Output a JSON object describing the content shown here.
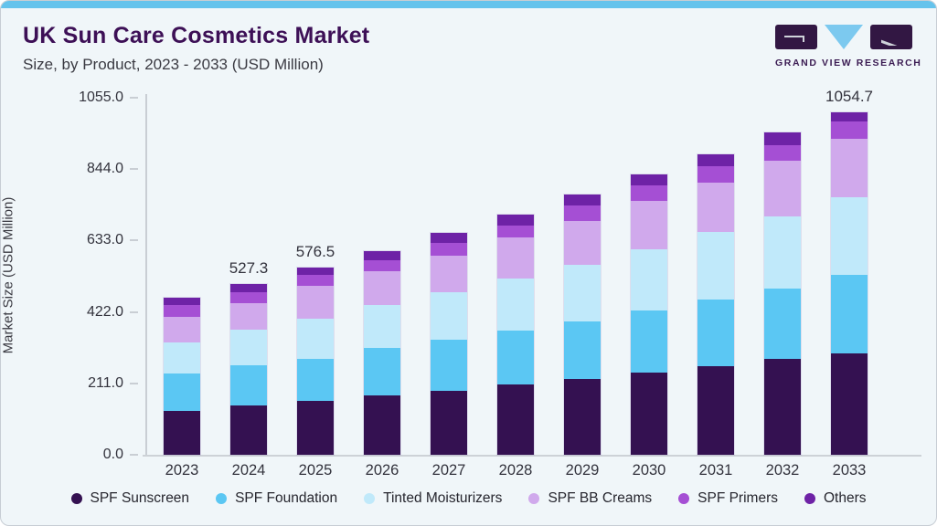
{
  "header": {
    "title": "UK Sun Care Cosmetics Market",
    "subtitle": "Size, by Product, 2023 - 2033 (USD Million)",
    "logo_text": "GRAND VIEW RESEARCH"
  },
  "colors": {
    "card_background": "#F0F6F9",
    "accent_strip": "#65C3EC",
    "title_text": "#3D1056",
    "axis_line": "#C9CED4",
    "axis_text": "#33333D"
  },
  "chart_data": {
    "type": "bar",
    "stacked": true,
    "title": "UK Sun Care Cosmetics Market Size, by Product, 2023 - 2033 (USD Million)",
    "xlabel": "",
    "ylabel": "Market Size (USD Million)",
    "ylim": [
      0,
      1055
    ],
    "grid": false,
    "legend_position": "bottom",
    "yticks": [
      {
        "label": "0.0",
        "value": 0
      },
      {
        "label": "211.0",
        "value": 211
      },
      {
        "label": "422.0",
        "value": 422
      },
      {
        "label": "633.0",
        "value": 633
      },
      {
        "label": "844.0",
        "value": 844
      },
      {
        "label": "1055.0",
        "value": 1055
      }
    ],
    "categories": [
      "2023",
      "2024",
      "2025",
      "2026",
      "2027",
      "2028",
      "2029",
      "2030",
      "2031",
      "2032",
      "2033"
    ],
    "total_labels": [
      "",
      "527.3",
      "576.5",
      "",
      "",
      "",
      "",
      "",
      "",
      "",
      "1054.7"
    ],
    "series": [
      {
        "name": "SPF Sunscreen",
        "color": "#341151",
        "values": [
          136,
          152,
          165,
          182,
          196,
          217,
          233,
          252,
          272,
          294,
          313
        ]
      },
      {
        "name": "SPF Foundation",
        "color": "#5BC7F3",
        "values": [
          114,
          123,
          131,
          147,
          157,
          165,
          178,
          193,
          206,
          219,
          240
        ]
      },
      {
        "name": "Tinted Moisturizers",
        "color": "#C0E9FA",
        "values": [
          95,
          109,
          124,
          133,
          148,
          161,
          175,
          189,
          209,
          222,
          240
        ]
      },
      {
        "name": "SPF BB Creams",
        "color": "#D0A9EC",
        "values": [
          80,
          82,
          100,
          103,
          113,
          126,
          134,
          147,
          152,
          170,
          179
        ]
      },
      {
        "name": "SPF Primers",
        "color": "#A54FD4",
        "values": [
          37,
          35,
          33,
          35,
          39,
          38,
          47,
          48,
          51,
          49,
          54
        ]
      },
      {
        "name": "Others",
        "color": "#6E22A6",
        "values": [
          22,
          26,
          24,
          27,
          31,
          34,
          34,
          34,
          36,
          38,
          29
        ]
      }
    ]
  }
}
